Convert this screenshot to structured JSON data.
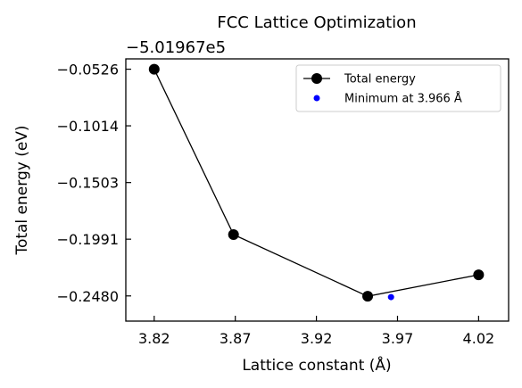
{
  "chart_data": {
    "type": "line",
    "title": "FCC Lattice Optimization",
    "xlabel": "Lattice constant (Å)",
    "ylabel": "Total energy (eV)",
    "y_offset_label": "−5.01967e5",
    "xlim": [
      3.8025,
      4.0385
    ],
    "ylim": [
      -0.2697,
      -0.0437
    ],
    "x_ticks": [
      {
        "value": 3.82,
        "label": "3.82"
      },
      {
        "value": 3.87,
        "label": "3.87"
      },
      {
        "value": 3.92,
        "label": "3.92"
      },
      {
        "value": 3.97,
        "label": "3.97"
      },
      {
        "value": 4.02,
        "label": "4.02"
      }
    ],
    "y_ticks": [
      {
        "value": -0.0526,
        "label": "−0.0526"
      },
      {
        "value": -0.1014,
        "label": "−0.1014"
      },
      {
        "value": -0.1503,
        "label": "−0.1503"
      },
      {
        "value": -0.1991,
        "label": "−0.1991"
      },
      {
        "value": -0.248,
        "label": "−0.2480"
      }
    ],
    "grid": false,
    "legend_position": "top-right",
    "series": [
      {
        "name": "Total energy",
        "kind": "line-marker",
        "color": "#000000",
        "points": [
          {
            "x": 3.82,
            "y": -0.0526
          },
          {
            "x": 3.8689,
            "y": -0.1951
          },
          {
            "x": 3.9516,
            "y": -0.2483
          },
          {
            "x": 4.02,
            "y": -0.2298
          }
        ]
      },
      {
        "name": "Minimum at 3.966 Å",
        "kind": "marker",
        "color": "#0000ff",
        "points": [
          {
            "x": 3.966,
            "y": -0.249
          }
        ]
      }
    ]
  }
}
